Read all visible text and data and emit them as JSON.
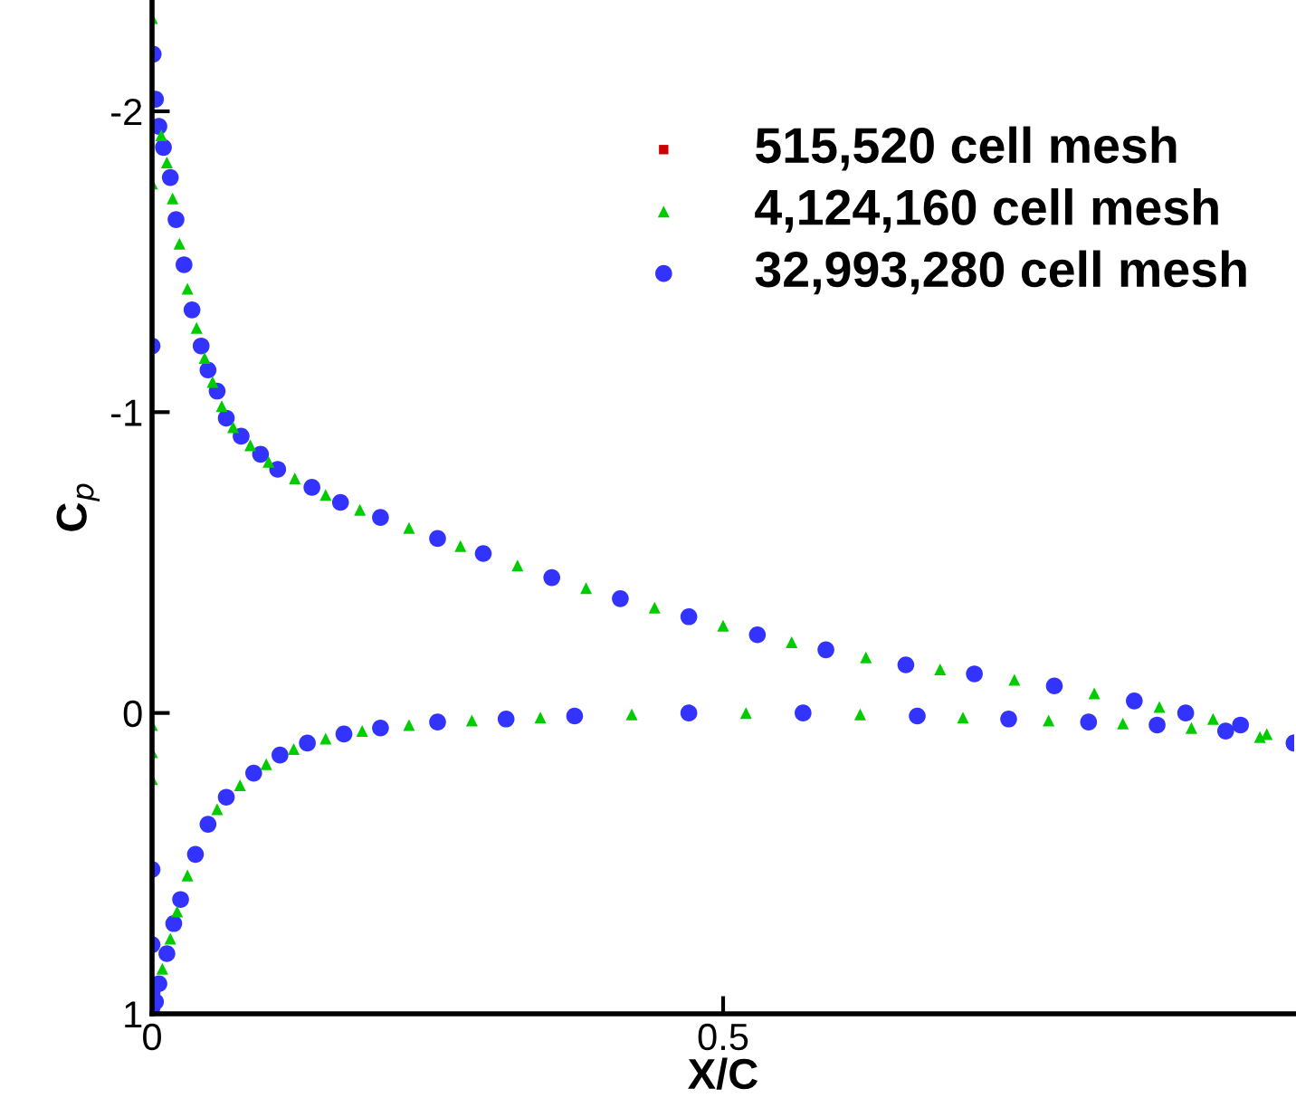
{
  "chart_data": {
    "type": "scatter",
    "xlabel": "X/C",
    "ylabel": "C$_{p}$",
    "xlim": [
      0,
      1
    ],
    "ylim": [
      1,
      -2.37
    ],
    "xticks": [
      0,
      0.5
    ],
    "yticks": [
      -2,
      -1,
      0,
      1
    ],
    "grid": false,
    "legend": "top right",
    "series": [
      {
        "name": "515,520 cell mesh",
        "color": "#cc0000",
        "marker": "square"
      },
      {
        "name": "4,124,160 cell mesh",
        "color": "#00cc00",
        "marker": "triangle",
        "x": [
          0.976,
          0.929,
          0.882,
          0.825,
          0.755,
          0.69,
          0.625,
          0.56,
          0.5,
          0.44,
          0.38,
          0.32,
          0.27,
          0.225,
          0.182,
          0.152,
          0.125,
          0.102,
          0.086,
          0.071,
          0.061,
          0.053,
          0.046,
          0.039,
          0.031,
          0.024,
          0.018,
          0.013,
          0.008,
          0.0,
          0.0,
          0.0,
          0.0,
          0.0,
          0.009,
          0.016,
          0.022,
          0.031,
          0.057,
          0.077,
          0.1,
          0.124,
          0.152,
          0.184,
          0.225,
          0.28,
          0.34,
          0.42,
          0.52,
          0.62,
          0.71,
          0.785,
          0.85,
          0.91,
          0.97
        ],
        "values": [
          0.07,
          0.02,
          -0.02,
          -0.065,
          -0.11,
          -0.145,
          -0.185,
          -0.235,
          -0.29,
          -0.35,
          -0.415,
          -0.49,
          -0.555,
          -0.615,
          -0.675,
          -0.725,
          -0.78,
          -0.835,
          -0.89,
          -0.95,
          -1.02,
          -1.1,
          -1.18,
          -1.28,
          -1.41,
          -1.56,
          -1.71,
          -1.83,
          -1.92,
          -2.31,
          -1.76,
          0.04,
          0.13,
          0.22,
          0.85,
          0.75,
          0.66,
          0.54,
          0.32,
          0.24,
          0.17,
          0.12,
          0.085,
          0.06,
          0.04,
          0.025,
          0.015,
          0.005,
          0.0,
          0.005,
          0.015,
          0.025,
          0.035,
          0.05,
          0.08
        ]
      },
      {
        "name": "32,993,280 cell mesh",
        "color": "#3333ff",
        "marker": "circle",
        "x": [
          1.0,
          0.953,
          0.905,
          0.86,
          0.79,
          0.72,
          0.66,
          0.59,
          0.53,
          0.47,
          0.41,
          0.35,
          0.29,
          0.25,
          0.2,
          0.165,
          0.14,
          0.11,
          0.095,
          0.078,
          0.065,
          0.057,
          0.049,
          0.043,
          0.035,
          0.028,
          0.021,
          0.016,
          0.01,
          0.006,
          0.003,
          0.001,
          0.0,
          0.0,
          0.0,
          0.0,
          0.0,
          0.003,
          0.006,
          0.013,
          0.019,
          0.025,
          0.038,
          0.049,
          0.065,
          0.089,
          0.112,
          0.136,
          0.168,
          0.2,
          0.25,
          0.31,
          0.37,
          0.47,
          0.57,
          0.67,
          0.75,
          0.82,
          0.88,
          0.94,
          1.0
        ],
        "values": [
          0.1,
          0.04,
          0.0,
          -0.04,
          -0.09,
          -0.13,
          -0.16,
          -0.21,
          -0.26,
          -0.32,
          -0.38,
          -0.45,
          -0.53,
          -0.58,
          -0.65,
          -0.7,
          -0.75,
          -0.81,
          -0.86,
          -0.92,
          -0.98,
          -1.07,
          -1.14,
          -1.22,
          -1.34,
          -1.49,
          -1.64,
          -1.78,
          -1.88,
          -1.95,
          -2.04,
          -2.19,
          -1.22,
          0.52,
          0.77,
          0.93,
          0.98,
          0.96,
          0.9,
          0.8,
          0.7,
          0.62,
          0.47,
          0.37,
          0.28,
          0.2,
          0.14,
          0.1,
          0.07,
          0.05,
          0.03,
          0.02,
          0.01,
          0.0,
          0.0,
          0.01,
          0.02,
          0.03,
          0.04,
          0.06,
          0.1
        ]
      }
    ]
  }
}
